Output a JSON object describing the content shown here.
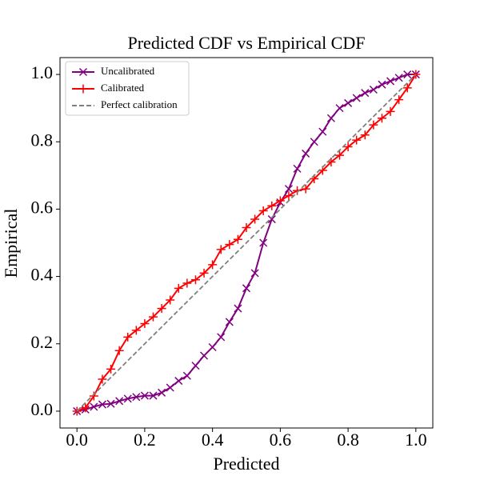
{
  "chart_data": {
    "type": "line",
    "title": "Predicted CDF vs Empirical CDF",
    "xlabel": "Predicted",
    "ylabel": "Empirical",
    "x": [
      0,
      0.025,
      0.05,
      0.075,
      0.1,
      0.125,
      0.15,
      0.175,
      0.2,
      0.225,
      0.25,
      0.275,
      0.3,
      0.325,
      0.35,
      0.375,
      0.4,
      0.425,
      0.45,
      0.475,
      0.5,
      0.525,
      0.55,
      0.575,
      0.6,
      0.625,
      0.65,
      0.675,
      0.7,
      0.725,
      0.75,
      0.775,
      0.8,
      0.825,
      0.85,
      0.875,
      0.9,
      0.925,
      0.95,
      0.975,
      1.0
    ],
    "series": [
      {
        "name": "Uncalibrated",
        "color": "#800080",
        "marker": "x",
        "values": [
          0.0,
          0.005,
          0.013,
          0.02,
          0.022,
          0.03,
          0.037,
          0.042,
          0.046,
          0.046,
          0.055,
          0.07,
          0.09,
          0.105,
          0.135,
          0.165,
          0.19,
          0.22,
          0.265,
          0.305,
          0.365,
          0.41,
          0.5,
          0.57,
          0.62,
          0.66,
          0.72,
          0.765,
          0.8,
          0.83,
          0.87,
          0.9,
          0.915,
          0.93,
          0.945,
          0.955,
          0.97,
          0.98,
          0.99,
          1.0,
          1.0
        ]
      },
      {
        "name": "Calibrated",
        "color": "#ff0000",
        "marker": "+",
        "values": [
          0.0,
          0.01,
          0.045,
          0.095,
          0.125,
          0.18,
          0.22,
          0.24,
          0.26,
          0.28,
          0.305,
          0.33,
          0.365,
          0.38,
          0.39,
          0.41,
          0.435,
          0.48,
          0.495,
          0.51,
          0.545,
          0.57,
          0.595,
          0.61,
          0.625,
          0.64,
          0.655,
          0.66,
          0.69,
          0.715,
          0.74,
          0.76,
          0.785,
          0.805,
          0.82,
          0.85,
          0.87,
          0.89,
          0.925,
          0.96,
          1.0
        ]
      },
      {
        "name": "Perfect calibration",
        "color": "#808080",
        "dashed": true,
        "x": [
          0,
          1
        ],
        "values": [
          0,
          1
        ]
      }
    ],
    "xlim": [
      -0.05,
      1.05
    ],
    "ylim": [
      -0.05,
      1.05
    ],
    "xticks": [
      {
        "value": 0,
        "label": "0.0"
      },
      {
        "value": 0.2,
        "label": "0.2"
      },
      {
        "value": 0.4,
        "label": "0.4"
      },
      {
        "value": 0.6,
        "label": "0.6"
      },
      {
        "value": 0.8,
        "label": "0.8"
      },
      {
        "value": 1,
        "label": "1.0"
      }
    ],
    "yticks": [
      {
        "value": 0,
        "label": "0.0"
      },
      {
        "value": 0.2,
        "label": "0.2"
      },
      {
        "value": 0.4,
        "label": "0.4"
      },
      {
        "value": 0.6,
        "label": "0.6"
      },
      {
        "value": 0.8,
        "label": "0.8"
      },
      {
        "value": 1,
        "label": "1.0"
      }
    ],
    "legend": "upper left",
    "grid": false
  }
}
